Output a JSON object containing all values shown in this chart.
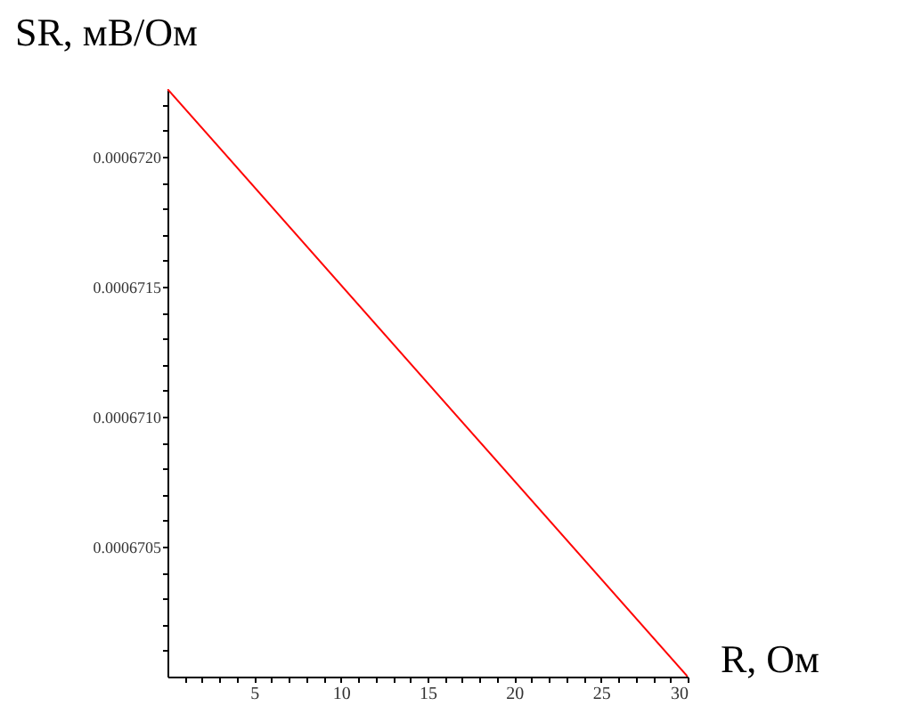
{
  "chart_data": {
    "type": "line",
    "xlabel": "R, Ом",
    "ylabel": "SR, мВ/Ом",
    "x": [
      0,
      30
    ],
    "series": [
      {
        "color": "#ff0000",
        "values": [
          0.00067226,
          0.00067
        ]
      }
    ],
    "xlim": [
      0,
      30
    ],
    "ylim": [
      0.00067,
      0.00067226
    ],
    "xticks": [
      {
        "value": 1,
        "label": null
      },
      {
        "value": 2,
        "label": null
      },
      {
        "value": 3,
        "label": null
      },
      {
        "value": 4,
        "label": null
      },
      5,
      {
        "value": 6,
        "label": null
      },
      {
        "value": 7,
        "label": null
      },
      {
        "value": 8,
        "label": null
      },
      {
        "value": 9,
        "label": null
      },
      10,
      {
        "value": 11,
        "label": null
      },
      {
        "value": 12,
        "label": null
      },
      {
        "value": 13,
        "label": null
      },
      {
        "value": 14,
        "label": null
      },
      15,
      {
        "value": 16,
        "label": null
      },
      {
        "value": 17,
        "label": null
      },
      {
        "value": 18,
        "label": null
      },
      {
        "value": 19,
        "label": null
      },
      20,
      {
        "value": 21,
        "label": null
      },
      {
        "value": 22,
        "label": null
      },
      {
        "value": 23,
        "label": null
      },
      {
        "value": 24,
        "label": null
      },
      25,
      {
        "value": 26,
        "label": null
      },
      {
        "value": 27,
        "label": null
      },
      {
        "value": 28,
        "label": null
      },
      {
        "value": 29,
        "label": null
      },
      30
    ],
    "yticks": [
      {
        "value": 0.0006701,
        "label": null
      },
      {
        "value": 0.0006702,
        "label": null
      },
      {
        "value": 0.0006703,
        "label": null
      },
      {
        "value": 0.0006704,
        "label": null
      },
      0.0006705,
      {
        "value": 0.0006706,
        "label": null
      },
      {
        "value": 0.0006707,
        "label": null
      },
      {
        "value": 0.0006708,
        "label": null
      },
      {
        "value": 0.0006709,
        "label": null
      },
      {
        "value": 0.000671,
        "label": "0.0006710"
      },
      {
        "value": 0.0006711,
        "label": null
      },
      {
        "value": 0.0006712,
        "label": null
      },
      {
        "value": 0.0006713,
        "label": null
      },
      {
        "value": 0.0006714,
        "label": null
      },
      0.0006715,
      {
        "value": 0.0006716,
        "label": null
      },
      {
        "value": 0.0006717,
        "label": null
      },
      {
        "value": 0.0006718,
        "label": null
      },
      {
        "value": 0.0006719,
        "label": null
      },
      {
        "value": 0.000672,
        "label": "0.0006720"
      },
      {
        "value": 0.0006721,
        "label": null
      },
      {
        "value": 0.0006722,
        "label": null
      }
    ],
    "grid": false,
    "line_style": "solid"
  }
}
